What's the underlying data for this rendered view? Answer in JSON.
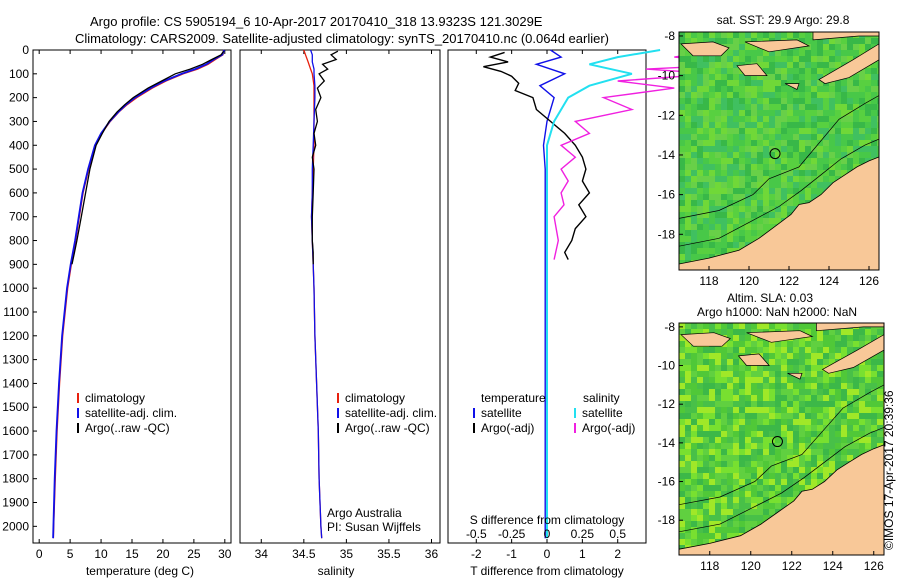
{
  "header": {
    "line1": "Argo profile: CS 5905194_6 10-Apr-2017 20170410_318 13.9323S 121.3029E",
    "line2": "Climatology: CARS2009. Satellite-adjusted climatology: synTS_20170410.nc (0.064d earlier)"
  },
  "colors": {
    "climatology": "#e8200d",
    "satellite": "#1010e8",
    "argo": "#000000",
    "salinity_satellite": "#22e0f0",
    "salinity_argo": "#f020e0",
    "land": "#f8c898",
    "ocean": "#40c040"
  },
  "chart_data": [
    {
      "type": "line",
      "panel": "temperature",
      "xlabel": "temperature (deg C)",
      "ylabel": "",
      "xlim": [
        -1,
        31
      ],
      "ylim": [
        2070,
        0
      ],
      "xticks": [
        "0",
        "5",
        "10",
        "15",
        "20",
        "25",
        "30"
      ],
      "xtick_values": [
        0,
        5,
        10,
        15,
        20,
        25,
        30
      ],
      "yticks": [
        "0",
        "100",
        "200",
        "300",
        "400",
        "500",
        "600",
        "700",
        "800",
        "900",
        "1000",
        "1100",
        "1200",
        "1300",
        "1400",
        "1500",
        "1600",
        "1700",
        "1800",
        "1900",
        "2000"
      ],
      "ytick_values": [
        0,
        100,
        200,
        300,
        400,
        500,
        600,
        700,
        800,
        900,
        1000,
        1100,
        1200,
        1300,
        1400,
        1500,
        1600,
        1700,
        1800,
        1900,
        2000
      ],
      "legend": [
        "climatology",
        "satellite-adj. clim.",
        "Argo(..raw -QC)"
      ],
      "legend_position": "lower-right",
      "series": [
        {
          "name": "climatology",
          "depth": [
            0,
            20,
            40,
            60,
            80,
            100,
            130,
            160,
            200,
            230,
            260,
            300,
            350,
            400,
            500,
            600,
            700,
            800,
            900,
            1000,
            1200,
            1400,
            1600,
            1800,
            2000,
            2050
          ],
          "values": [
            29.8,
            29.7,
            28.5,
            27.3,
            25.6,
            23.3,
            20.5,
            18.3,
            15.8,
            14.2,
            12.9,
            11.5,
            10.1,
            9.1,
            8.0,
            7.1,
            6.5,
            5.9,
            5.2,
            4.6,
            3.8,
            3.3,
            2.9,
            2.6,
            2.35,
            2.3
          ]
        },
        {
          "name": "satellite-adj. clim.",
          "depth": [
            0,
            20,
            40,
            60,
            80,
            100,
            130,
            160,
            200,
            230,
            260,
            300,
            350,
            400,
            500,
            600,
            700,
            800,
            900,
            1000,
            1200,
            1400,
            1600,
            1800,
            2000,
            2050
          ],
          "values": [
            29.9,
            29.6,
            28.2,
            27.0,
            25.2,
            23.0,
            20.2,
            18.0,
            15.5,
            14.0,
            12.8,
            11.4,
            10.0,
            9.0,
            7.9,
            7.0,
            6.4,
            5.8,
            5.1,
            4.5,
            3.7,
            3.2,
            2.8,
            2.5,
            2.3,
            2.25
          ]
        },
        {
          "name": "Argo(..raw -QC)",
          "depth": [
            5,
            20,
            40,
            60,
            80,
            100,
            130,
            160,
            200,
            230,
            260,
            300,
            350,
            400,
            500,
            600,
            700,
            800,
            850,
            900
          ],
          "values": [
            29.8,
            29.4,
            27.9,
            26.4,
            24.4,
            22.0,
            19.8,
            17.6,
            15.2,
            13.8,
            12.6,
            11.3,
            10.2,
            9.2,
            8.2,
            7.5,
            6.8,
            6.1,
            5.7,
            5.3
          ]
        }
      ]
    },
    {
      "type": "line",
      "panel": "salinity",
      "xlabel": "salinity",
      "xlim": [
        33.75,
        36.1
      ],
      "ylim": [
        2070,
        0
      ],
      "xticks": [
        "34",
        "34.5",
        "35",
        "35.5",
        "36"
      ],
      "xtick_values": [
        34,
        34.5,
        35,
        35.5,
        36
      ],
      "legend": [
        "climatology",
        "satellite-adj. clim.",
        "Argo(..raw -QC)"
      ],
      "legend_position": "lower-right",
      "annotations": [
        "Argo Australia",
        "PI: Susan Wijffels"
      ],
      "series": [
        {
          "name": "climatology",
          "depth": [
            0,
            20,
            50,
            80,
            100,
            150,
            200,
            300,
            400,
            500,
            600,
            700,
            800,
            900,
            1000,
            1200,
            1400,
            1600,
            1800,
            2000,
            2050
          ],
          "values": [
            34.5,
            34.52,
            34.55,
            34.58,
            34.6,
            34.62,
            34.62,
            34.62,
            34.62,
            34.61,
            34.6,
            34.59,
            34.6,
            34.61,
            34.62,
            34.63,
            34.65,
            34.67,
            34.68,
            34.7,
            34.71
          ]
        },
        {
          "name": "satellite-adj. clim.",
          "depth": [
            0,
            20,
            50,
            80,
            100,
            150,
            200,
            300,
            400,
            500,
            600,
            700,
            800,
            900,
            1000,
            1200,
            1400,
            1600,
            1800,
            2000,
            2050
          ],
          "values": [
            34.58,
            34.6,
            34.6,
            34.62,
            34.62,
            34.63,
            34.63,
            34.62,
            34.61,
            34.6,
            34.6,
            34.59,
            34.6,
            34.61,
            34.62,
            34.63,
            34.65,
            34.67,
            34.68,
            34.7,
            34.71
          ]
        },
        {
          "name": "Argo(..raw -QC)",
          "depth": [
            5,
            20,
            40,
            60,
            80,
            100,
            130,
            160,
            200,
            250,
            300,
            350,
            400,
            450,
            500,
            600,
            700,
            800,
            850,
            900
          ],
          "values": [
            34.9,
            34.82,
            34.88,
            34.72,
            34.78,
            34.68,
            34.74,
            34.66,
            34.7,
            34.64,
            34.66,
            34.62,
            34.64,
            34.6,
            34.62,
            34.61,
            34.6,
            34.6,
            34.61,
            34.61
          ]
        }
      ]
    },
    {
      "type": "line",
      "panel": "difference",
      "xlabel": "T difference from climatology",
      "xlabel_top": "S difference from climatology",
      "xlim": [
        -2.8,
        2.8
      ],
      "ylim": [
        2070,
        0
      ],
      "xticks": [
        "-2",
        "-1",
        "0",
        "1",
        "2"
      ],
      "xtick_values": [
        -2,
        -1,
        0,
        1,
        2
      ],
      "xticks_top": [
        "-0.5",
        "-0.25",
        "0",
        "0.25",
        "0.5"
      ],
      "xtick_top_values": [
        -0.5,
        -0.25,
        0,
        0.25,
        0.5
      ],
      "legend_temperature": [
        "temperature",
        "satellite",
        "Argo(-adj)"
      ],
      "legend_salinity": [
        "salinity",
        "satellite",
        "Argo(-adj)"
      ],
      "legend_position": "lower-center",
      "series": [
        {
          "name": "satellite",
          "depth": [
            0,
            30,
            60,
            100,
            150,
            200,
            300,
            400,
            500,
            700,
            900,
            1200,
            1600,
            2050
          ],
          "values": [
            0.1,
            0.4,
            -0.3,
            0.5,
            -0.2,
            0.2,
            0,
            -0.1,
            -0.05,
            -0.05,
            -0.05,
            -0.05,
            -0.05,
            -0.05
          ]
        },
        {
          "name": "Argo(-adj)",
          "depth": [
            10,
            30,
            50,
            70,
            90,
            110,
            140,
            170,
            200,
            250,
            300,
            350,
            400,
            450,
            500,
            550,
            600,
            650,
            700,
            750,
            800,
            850,
            880
          ],
          "values": [
            -1.2,
            -1.6,
            -1.1,
            -1.8,
            -1.3,
            -1.0,
            -0.8,
            -0.9,
            -0.4,
            -0.3,
            0.1,
            0.5,
            0.8,
            1.0,
            1.1,
            1.0,
            1.2,
            0.9,
            1.1,
            0.8,
            0.7,
            0.5,
            0.6
          ]
        },
        {
          "name": "satellite",
          "depth": [
            0,
            30,
            60,
            100,
            150,
            200,
            300,
            400,
            500,
            700,
            900,
            1200,
            1600,
            2050
          ],
          "values": [
            0.8,
            0.5,
            0.3,
            0.6,
            0.3,
            0.15,
            0.05,
            0,
            0,
            0,
            0,
            0,
            0,
            0
          ]
        },
        {
          "name": "Argo(-adj)",
          "depth": [
            10,
            30,
            60,
            80,
            100,
            130,
            160,
            200,
            250,
            300,
            350,
            400,
            450,
            500,
            550,
            600,
            650,
            700,
            800,
            880
          ],
          "values": [
            1.1,
            0.9,
            1.4,
            0.7,
            1.2,
            0.5,
            0.9,
            0.4,
            0.6,
            0.2,
            0.3,
            0.1,
            0.2,
            0.1,
            0.15,
            0.1,
            0.12,
            0.05,
            0.08,
            0.05
          ]
        }
      ]
    },
    {
      "type": "heatmap",
      "panel": "sst-map",
      "title": "sat. SST: 29.9  Argo: 29.8",
      "xlim": [
        116.5,
        126.5
      ],
      "ylim": [
        -19.8,
        -7.8
      ],
      "xticks": [
        "118",
        "120",
        "122",
        "124",
        "126"
      ],
      "xtick_values": [
        118,
        120,
        122,
        124,
        126
      ],
      "yticks": [
        "-8",
        "-10",
        "-12",
        "-14",
        "-16",
        "-18"
      ],
      "ytick_values": [
        -8,
        -10,
        -12,
        -14,
        -16,
        -18
      ],
      "float_position": {
        "lon": 121.3029,
        "lat": -13.9323
      }
    },
    {
      "type": "heatmap",
      "panel": "sla-map",
      "title": "Altim. SLA: 0.03",
      "subtitle": "Argo h1000: NaN h2000: NaN",
      "xlim": [
        116.5,
        126.5
      ],
      "ylim": [
        -19.8,
        -7.8
      ],
      "xticks": [
        "118",
        "120",
        "122",
        "124",
        "126"
      ],
      "xtick_values": [
        118,
        120,
        122,
        124,
        126
      ],
      "yticks": [
        "-8",
        "-10",
        "-12",
        "-14",
        "-16",
        "-18"
      ],
      "ytick_values": [
        -8,
        -10,
        -12,
        -14,
        -16,
        -18
      ],
      "float_position": {
        "lon": 121.3029,
        "lat": -13.9323
      }
    }
  ],
  "credit": "©IMOS 17-Apr-2017 20:39:36"
}
